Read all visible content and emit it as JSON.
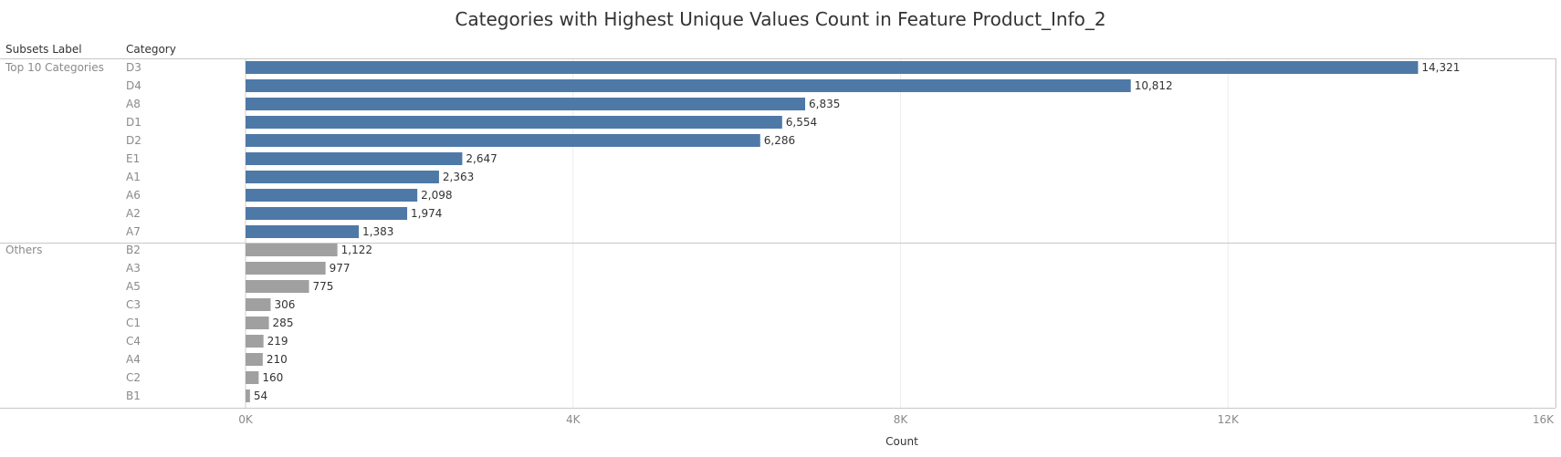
{
  "chart_data": {
    "type": "bar",
    "orientation": "horizontal",
    "title": "Categories with Highest Unique Values Count in Feature Product_Info_2",
    "column_headers": [
      "Subsets Label",
      "Category"
    ],
    "xlabel": "Count",
    "xlim": [
      0,
      16000
    ],
    "xticks": [
      0,
      4000,
      8000,
      12000,
      16000
    ],
    "xtick_labels": [
      "0K",
      "4K",
      "8K",
      "12K",
      "16K"
    ],
    "grid": true,
    "groups": [
      {
        "label": "Top 10 Categories",
        "color": "#4e79a7",
        "categories": [
          "D3",
          "D4",
          "A8",
          "D1",
          "D2",
          "E1",
          "A1",
          "A6",
          "A2",
          "A7"
        ],
        "values": [
          14321,
          10812,
          6835,
          6554,
          6286,
          2647,
          2363,
          2098,
          1974,
          1383
        ],
        "value_labels": [
          "14,321",
          "10,812",
          "6,835",
          "6,554",
          "6,286",
          "2,647",
          "2,363",
          "2,098",
          "1,974",
          "1,383"
        ]
      },
      {
        "label": "Others",
        "color": "#a0a0a0",
        "categories": [
          "B2",
          "A3",
          "A5",
          "C3",
          "C1",
          "C4",
          "A4",
          "C2",
          "B1"
        ],
        "values": [
          1122,
          977,
          775,
          306,
          285,
          219,
          210,
          160,
          54
        ],
        "value_labels": [
          "1,122",
          "977",
          "775",
          "306",
          "285",
          "219",
          "210",
          "160",
          "54"
        ]
      }
    ]
  }
}
